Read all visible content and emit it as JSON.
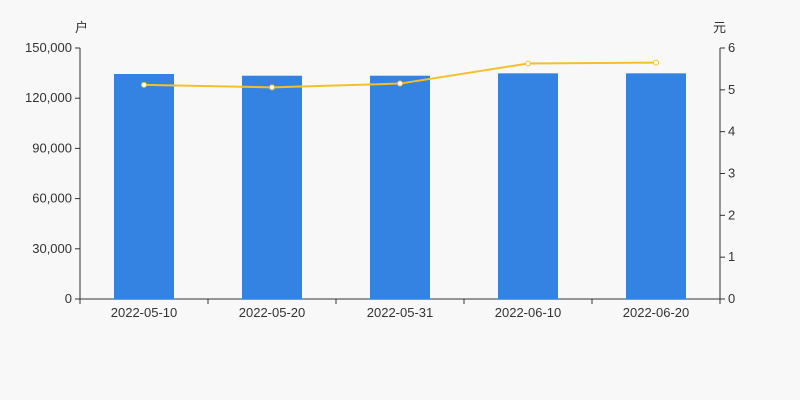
{
  "chart_data": {
    "type": "bar+line",
    "categories": [
      "2022-05-10",
      "2022-05-20",
      "2022-05-31",
      "2022-06-10",
      "2022-06-20"
    ],
    "series": [
      {
        "type": "bar",
        "axis": "left",
        "color": "#3483e3",
        "values": [
          134460,
          133440,
          133440,
          134860,
          134860
        ]
      },
      {
        "type": "line",
        "axis": "right",
        "color": "#f5c027",
        "values": [
          5.12,
          5.06,
          5.15,
          5.63,
          5.65
        ]
      }
    ],
    "left_axis": {
      "unit_label": "户",
      "ylim": [
        0,
        150000
      ],
      "ticks": [
        "0",
        "30,000",
        "60,000",
        "90,000",
        "120,000",
        "150,000"
      ],
      "tick_values": [
        0,
        30000,
        60000,
        90000,
        120000,
        150000
      ]
    },
    "right_axis": {
      "unit_label": "元",
      "ylim": [
        0,
        6
      ],
      "ticks": [
        "0",
        "1",
        "2",
        "3",
        "4",
        "5",
        "6"
      ],
      "tick_values": [
        0,
        1,
        2,
        3,
        4,
        5,
        6
      ]
    },
    "grid": false,
    "legend": "none"
  }
}
